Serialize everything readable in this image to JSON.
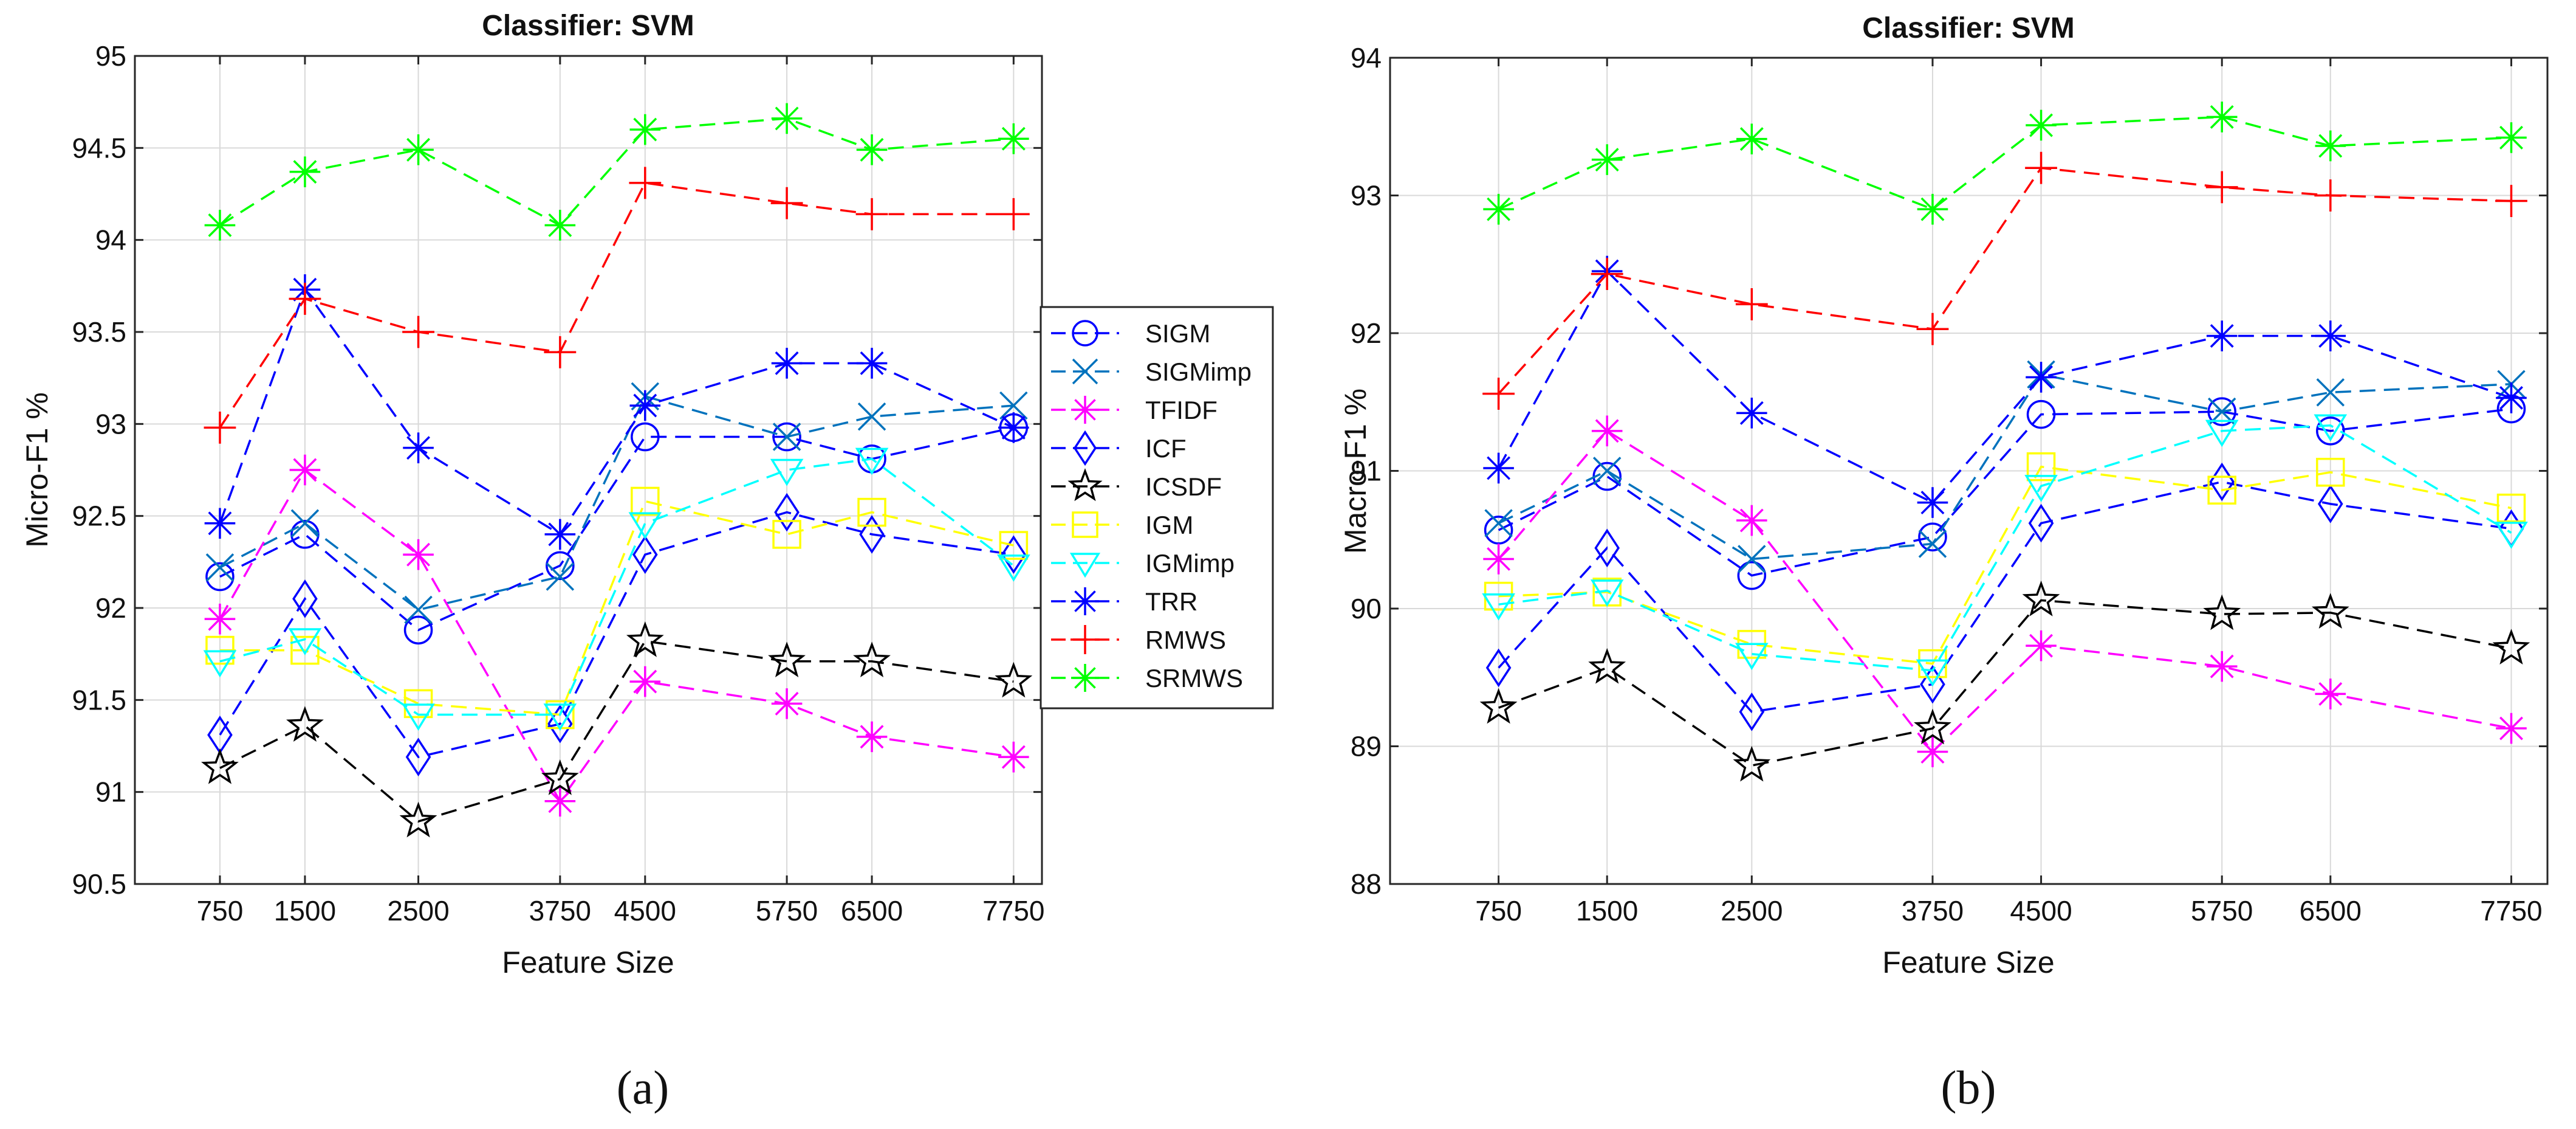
{
  "chart_data": [
    {
      "type": "line",
      "title": "Classifier: SVM",
      "xlabel": "Feature Size",
      "ylabel": "Micro-F1 %",
      "panel_label": "(a)",
      "x": [
        750,
        1500,
        2500,
        3750,
        4500,
        5750,
        6500,
        7750
      ],
      "xlim": [
        0,
        8000
      ],
      "ylim": [
        90.5,
        95
      ],
      "yticks": [
        90.5,
        91,
        91.5,
        92,
        92.5,
        93,
        93.5,
        94,
        94.5,
        95
      ],
      "ytick_labels": [
        "90.5",
        "91",
        "91.5",
        "92",
        "92.5",
        "93",
        "93.5",
        "94",
        "94.5",
        "95"
      ],
      "xtick_labels": [
        "750",
        "1500",
        "2500",
        "3750",
        "4500",
        "5750",
        "6500",
        "7750"
      ],
      "grid": true,
      "series": [
        {
          "name": "SIGM",
          "values": [
            92.17,
            92.4,
            91.88,
            92.23,
            92.93,
            92.93,
            92.81,
            92.98
          ]
        },
        {
          "name": "SIGMimp",
          "values": [
            92.22,
            92.46,
            91.99,
            92.17,
            93.15,
            92.93,
            93.04,
            93.1
          ]
        },
        {
          "name": "TFIDF",
          "values": [
            91.94,
            92.75,
            92.29,
            90.95,
            91.6,
            91.48,
            91.3,
            91.19
          ]
        },
        {
          "name": "ICF",
          "values": [
            91.31,
            92.05,
            91.19,
            91.37,
            92.29,
            92.52,
            92.4,
            92.29
          ]
        },
        {
          "name": "ICSDF",
          "values": [
            91.13,
            91.36,
            90.84,
            91.07,
            91.82,
            91.71,
            91.71,
            91.6
          ]
        },
        {
          "name": "IGM",
          "values": [
            91.77,
            91.77,
            91.48,
            91.42,
            92.58,
            92.4,
            92.52,
            92.34
          ]
        },
        {
          "name": "IGMimp",
          "values": [
            91.71,
            91.83,
            91.42,
            91.42,
            92.46,
            92.75,
            92.81,
            92.23
          ]
        },
        {
          "name": "TRR",
          "values": [
            92.46,
            93.73,
            92.87,
            92.4,
            93.1,
            93.33,
            93.33,
            92.98
          ]
        },
        {
          "name": "RMWS",
          "values": [
            92.98,
            93.68,
            93.5,
            93.39,
            94.31,
            94.2,
            94.14,
            94.14
          ]
        },
        {
          "name": "SRMWS",
          "values": [
            94.08,
            94.37,
            94.49,
            94.08,
            94.6,
            94.66,
            94.49,
            94.55
          ]
        }
      ]
    },
    {
      "type": "line",
      "title": "Classifier: SVM",
      "xlabel": "Feature Size",
      "ylabel": "Macro-F1 %",
      "panel_label": "(b)",
      "x": [
        750,
        1500,
        2500,
        3750,
        4500,
        5750,
        6500,
        7750
      ],
      "xlim": [
        0,
        8000
      ],
      "ylim": [
        88,
        94
      ],
      "yticks": [
        88,
        89,
        90,
        91,
        92,
        93,
        94
      ],
      "ytick_labels": [
        "88",
        "89",
        "90",
        "91",
        "92",
        "93",
        "94"
      ],
      "xtick_labels": [
        "750",
        "1500",
        "2500",
        "3750",
        "4500",
        "5750",
        "6500",
        "7750"
      ],
      "grid": true,
      "series": [
        {
          "name": "SIGM",
          "values": [
            90.57,
            90.96,
            90.24,
            90.52,
            91.41,
            91.43,
            91.29,
            91.45
          ]
        },
        {
          "name": "SIGMimp",
          "values": [
            90.62,
            91.0,
            90.36,
            90.47,
            91.7,
            91.43,
            91.57,
            91.63
          ]
        },
        {
          "name": "TFIDF",
          "values": [
            90.36,
            91.29,
            90.64,
            88.96,
            89.73,
            89.58,
            89.38,
            89.13
          ]
        },
        {
          "name": "ICF",
          "values": [
            89.57,
            90.44,
            89.25,
            89.45,
            90.62,
            90.92,
            90.76,
            90.58
          ]
        },
        {
          "name": "ICSDF",
          "values": [
            89.28,
            89.57,
            88.86,
            89.13,
            90.06,
            89.96,
            89.97,
            89.71
          ]
        },
        {
          "name": "IGM",
          "values": [
            90.09,
            90.12,
            89.74,
            89.6,
            91.03,
            90.86,
            90.99,
            90.73
          ]
        },
        {
          "name": "IGMimp",
          "values": [
            90.03,
            90.13,
            89.67,
            89.55,
            90.89,
            91.29,
            91.33,
            90.55
          ]
        },
        {
          "name": "TRR",
          "values": [
            91.02,
            92.45,
            91.42,
            90.77,
            91.68,
            91.98,
            91.98,
            91.53
          ]
        },
        {
          "name": "RMWS",
          "values": [
            91.56,
            92.43,
            92.21,
            92.03,
            93.2,
            93.06,
            93.0,
            92.96
          ]
        },
        {
          "name": "SRMWS",
          "values": [
            92.9,
            93.26,
            93.41,
            92.9,
            93.51,
            93.57,
            93.36,
            93.42
          ]
        }
      ]
    }
  ],
  "legend": {
    "placement": "between-panels",
    "entries": [
      {
        "name": "SIGM",
        "color": "#0000ff",
        "marker": "circle"
      },
      {
        "name": "SIGMimp",
        "color": "#0072bd",
        "marker": "x"
      },
      {
        "name": "TFIDF",
        "color": "#ff00ff",
        "marker": "asterisk"
      },
      {
        "name": "ICF",
        "color": "#0000ff",
        "marker": "diamond"
      },
      {
        "name": "ICSDF",
        "color": "#000000",
        "marker": "pentagram"
      },
      {
        "name": "IGM",
        "color": "#ffff00",
        "marker": "square"
      },
      {
        "name": "IGMimp",
        "color": "#00ffff",
        "marker": "triangle-down"
      },
      {
        "name": "TRR",
        "color": "#0000ff",
        "marker": "asterisk"
      },
      {
        "name": "RMWS",
        "color": "#ff0000",
        "marker": "plus"
      },
      {
        "name": "SRMWS",
        "color": "#00ff00",
        "marker": "asterisk"
      }
    ]
  }
}
